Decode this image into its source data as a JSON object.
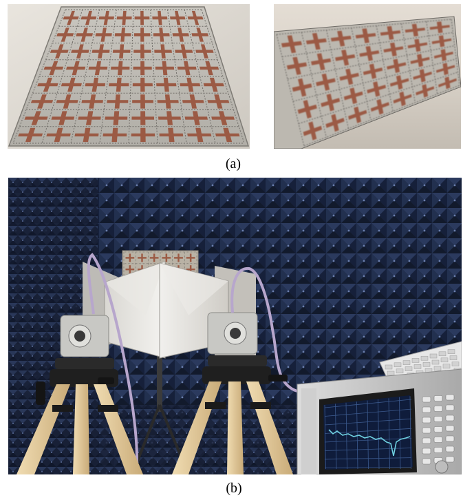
{
  "figure": {
    "caption_a": "(a)",
    "caption_b": "(b)"
  },
  "colors": {
    "metal": "#b9b7b2",
    "copper": "#9b5a44",
    "absorber": "#1c2740",
    "tripod_leg": "#e8d2a6",
    "screen": "#101c3a",
    "trace": "#6fd0e0"
  }
}
